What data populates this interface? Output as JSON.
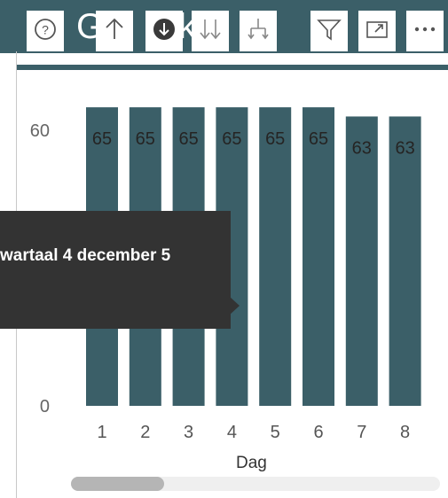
{
  "visual": {
    "title_partial": "G d g k ",
    "accent_color": "#3b5f68"
  },
  "toolbar": {
    "items": [
      {
        "icon": "help-icon"
      },
      {
        "icon": "drill-up-icon"
      },
      {
        "icon": "drill-down-on-icon"
      },
      {
        "icon": "expand-all-down-icon"
      },
      {
        "icon": "expand-next-level-icon"
      },
      {
        "icon": "filter-icon"
      },
      {
        "icon": "focus-mode-icon"
      },
      {
        "icon": "more-options-icon"
      }
    ]
  },
  "tooltip": {
    "text": "wartaal 4 december 5"
  },
  "chart_data": {
    "type": "bar",
    "categories": [
      "1",
      "2",
      "3",
      "4",
      "5",
      "6",
      "7",
      "8"
    ],
    "values": [
      65,
      65,
      65,
      65,
      65,
      65,
      63,
      63
    ],
    "data_labels": [
      "65",
      "65",
      "65",
      "65",
      "65",
      "65",
      "63",
      "63"
    ],
    "xlabel": "Dag",
    "ylabel": "",
    "ylim": [
      0,
      70
    ],
    "yticks": [
      "0",
      "60"
    ],
    "bar_color": "#3b5f68",
    "grid": false
  }
}
